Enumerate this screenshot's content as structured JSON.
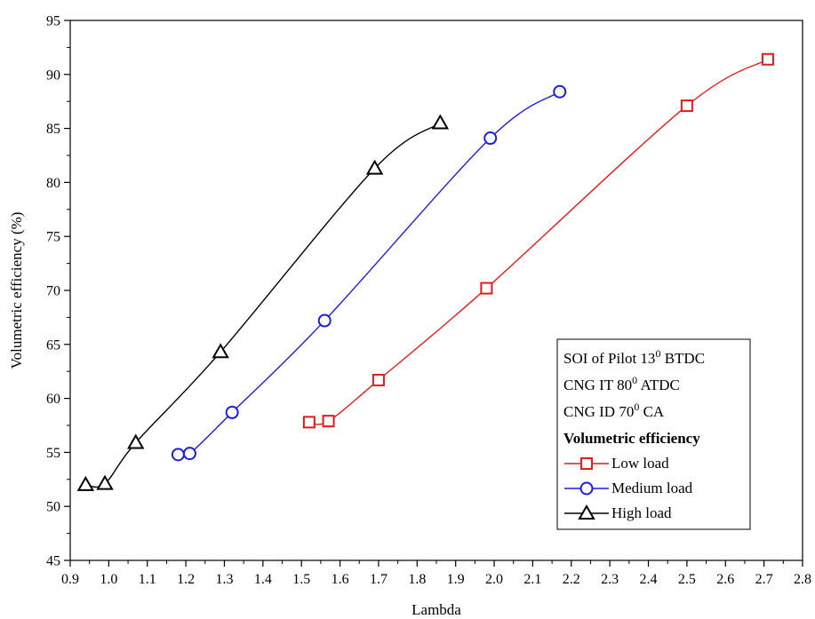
{
  "colors": {
    "low": "#e01c1c",
    "medium": "#1c1ce0",
    "high": "#000000"
  },
  "chart_data": {
    "type": "line",
    "xlabel": "Lambda",
    "ylabel": "Volumetric efficiency (%)",
    "xlim": [
      0.9,
      2.8
    ],
    "ylim": [
      45,
      95
    ],
    "xticks": [
      "0.9",
      "1.0",
      "1.1",
      "1.2",
      "1.3",
      "1.4",
      "1.5",
      "1.6",
      "1.7",
      "1.8",
      "1.9",
      "2.0",
      "2.1",
      "2.2",
      "2.3",
      "2.4",
      "2.5",
      "2.6",
      "2.7",
      "2.8"
    ],
    "yticks": [
      "45",
      "50",
      "55",
      "60",
      "65",
      "70",
      "75",
      "80",
      "85",
      "90",
      "95"
    ],
    "grid": false,
    "legend_position": "bottom-right",
    "legend_notes": [
      {
        "text": "SOI of Pilot 13",
        "sup": "0",
        "suffix": " BTDC"
      },
      {
        "text": "CNG IT 80",
        "sup": "0",
        "suffix": " ATDC"
      },
      {
        "text": "CNG ID 70",
        "sup": "0",
        "suffix": " CA"
      }
    ],
    "legend_heading": "Volumetric efficiency",
    "series": [
      {
        "name": "Low load",
        "marker": "square",
        "color_key": "low",
        "points": [
          [
            1.52,
            57.8
          ],
          [
            1.57,
            57.9
          ],
          [
            1.7,
            61.7
          ],
          [
            1.98,
            70.2
          ],
          [
            2.5,
            87.1
          ],
          [
            2.71,
            91.4
          ]
        ]
      },
      {
        "name": "Medium load",
        "marker": "circle",
        "color_key": "medium",
        "points": [
          [
            1.18,
            54.8
          ],
          [
            1.21,
            54.9
          ],
          [
            1.32,
            58.7
          ],
          [
            1.56,
            67.2
          ],
          [
            1.99,
            84.1
          ],
          [
            2.17,
            88.4
          ]
        ]
      },
      {
        "name": "High load",
        "marker": "triangle",
        "color_key": "high",
        "points": [
          [
            0.94,
            52.0
          ],
          [
            0.99,
            52.1
          ],
          [
            1.07,
            55.9
          ],
          [
            1.29,
            64.3
          ],
          [
            1.69,
            81.3
          ],
          [
            1.86,
            85.5
          ]
        ]
      }
    ]
  }
}
